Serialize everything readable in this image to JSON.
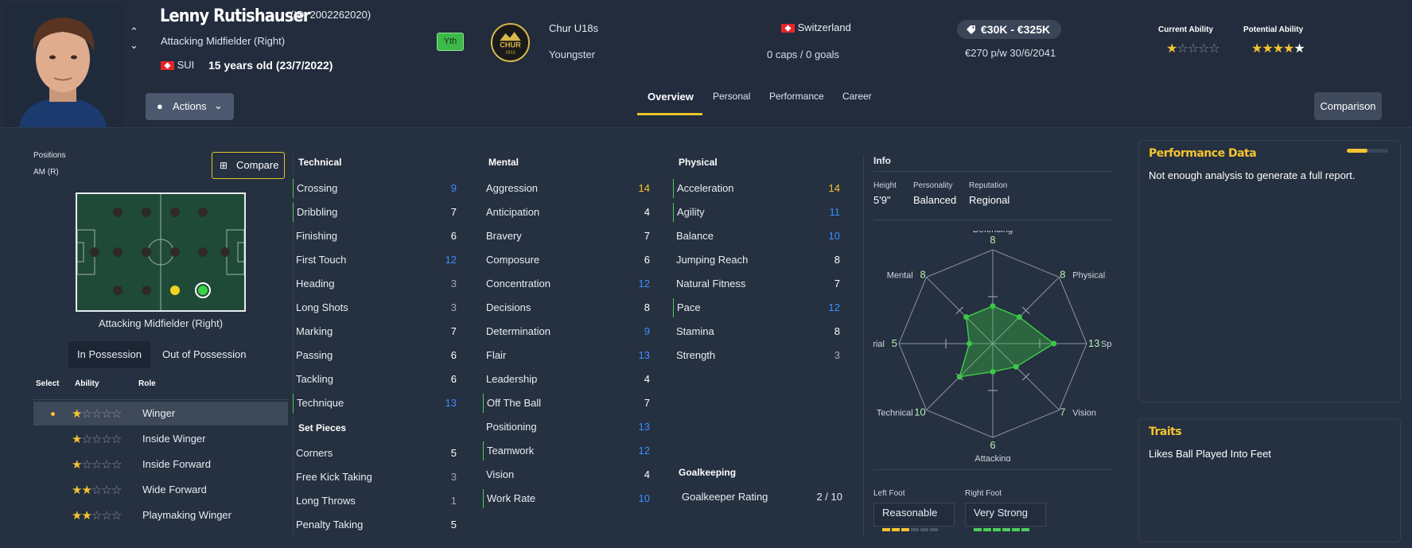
{
  "header": {
    "player_name": "Lenny Rutishauser",
    "player_id": "(ID: 2002262020)",
    "position": "Attacking Midfielder (Right)",
    "nationality": "SUI",
    "age": "15 years old (23/7/2022)",
    "youth_badge": "Yth",
    "club_crest_text": "CHUR",
    "club_crest_year": "1913",
    "club": "Chur U18s",
    "contract_type": "Youngster",
    "country": "Switzerland",
    "caps": "0 caps / 0 goals",
    "value": "€30K - €325K",
    "wage": "€270 p/w 30/6/2041",
    "current_ability_label": "Current Ability",
    "potential_ability_label": "Potential Ability",
    "current_ability_stars": 1,
    "potential_ability_stars": 4.5,
    "actions_label": "Actions",
    "comparison_label": "Comparison",
    "tabs": [
      "Overview",
      "Personal",
      "Performance",
      "Career"
    ],
    "active_tab": "Overview"
  },
  "positions": {
    "label": "Positions",
    "value": "AM (R)",
    "compare_label": "Compare",
    "pitch_caption": "Attacking Midfielder (Right)",
    "possession_tabs": [
      "In Possession",
      "Out of Possession"
    ],
    "table_headers": [
      "Select",
      "Ability",
      "Role"
    ],
    "roles": [
      {
        "stars": 1,
        "label": "Winger",
        "selected": true
      },
      {
        "stars": 1,
        "label": "Inside Winger",
        "selected": false
      },
      {
        "stars": 1,
        "label": "Inside Forward",
        "selected": false
      },
      {
        "stars": 2,
        "label": "Wide Forward",
        "selected": false
      },
      {
        "stars": 2,
        "label": "Playmaking Winger",
        "selected": false
      }
    ]
  },
  "attributes": {
    "technical_title": "Technical",
    "technical": [
      {
        "name": "Crossing",
        "value": "9",
        "color": "#3d8fff",
        "key": true
      },
      {
        "name": "Dribbling",
        "value": "7",
        "color": "#ffffff",
        "key": true
      },
      {
        "name": "Finishing",
        "value": "6",
        "color": "#ffffff",
        "key": false
      },
      {
        "name": "First Touch",
        "value": "12",
        "color": "#3d8fff",
        "key": false
      },
      {
        "name": "Heading",
        "value": "3",
        "color": "#a0a8b6",
        "key": false
      },
      {
        "name": "Long Shots",
        "value": "3",
        "color": "#a0a8b6",
        "key": false
      },
      {
        "name": "Marking",
        "value": "7",
        "color": "#ffffff",
        "key": false
      },
      {
        "name": "Passing",
        "value": "6",
        "color": "#ffffff",
        "key": false
      },
      {
        "name": "Tackling",
        "value": "6",
        "color": "#ffffff",
        "key": false
      },
      {
        "name": "Technique",
        "value": "13",
        "color": "#3d8fff",
        "key": true
      }
    ],
    "set_pieces_title": "Set Pieces",
    "set_pieces": [
      {
        "name": "Corners",
        "value": "5",
        "color": "#ffffff",
        "key": false
      },
      {
        "name": "Free Kick Taking",
        "value": "3",
        "color": "#a0a8b6",
        "key": false
      },
      {
        "name": "Long Throws",
        "value": "1",
        "color": "#a0a8b6",
        "key": false
      },
      {
        "name": "Penalty Taking",
        "value": "5",
        "color": "#ffffff",
        "key": false
      }
    ],
    "mental_title": "Mental",
    "mental": [
      {
        "name": "Aggression",
        "value": "14",
        "color": "#f4c430",
        "key": false
      },
      {
        "name": "Anticipation",
        "value": "4",
        "color": "#ffffff",
        "key": false
      },
      {
        "name": "Bravery",
        "value": "7",
        "color": "#ffffff",
        "key": false
      },
      {
        "name": "Composure",
        "value": "6",
        "color": "#ffffff",
        "key": false
      },
      {
        "name": "Concentration",
        "value": "12",
        "color": "#3d8fff",
        "key": false
      },
      {
        "name": "Decisions",
        "value": "8",
        "color": "#ffffff",
        "key": false
      },
      {
        "name": "Determination",
        "value": "9",
        "color": "#3d8fff",
        "key": false
      },
      {
        "name": "Flair",
        "value": "13",
        "color": "#3d8fff",
        "key": false
      },
      {
        "name": "Leadership",
        "value": "4",
        "color": "#ffffff",
        "key": false
      },
      {
        "name": "Off The Ball",
        "value": "7",
        "color": "#ffffff",
        "key": true
      },
      {
        "name": "Positioning",
        "value": "13",
        "color": "#3d8fff",
        "key": false
      },
      {
        "name": "Teamwork",
        "value": "12",
        "color": "#3d8fff",
        "key": true
      },
      {
        "name": "Vision",
        "value": "4",
        "color": "#ffffff",
        "key": false
      },
      {
        "name": "Work Rate",
        "value": "10",
        "color": "#3d8fff",
        "key": true
      }
    ],
    "physical_title": "Physical",
    "physical": [
      {
        "name": "Acceleration",
        "value": "14",
        "color": "#f4c430",
        "key": true
      },
      {
        "name": "Agility",
        "value": "11",
        "color": "#3d8fff",
        "key": true
      },
      {
        "name": "Balance",
        "value": "10",
        "color": "#3d8fff",
        "key": false
      },
      {
        "name": "Jumping Reach",
        "value": "8",
        "color": "#ffffff",
        "key": false
      },
      {
        "name": "Natural Fitness",
        "value": "7",
        "color": "#ffffff",
        "key": false
      },
      {
        "name": "Pace",
        "value": "12",
        "color": "#3d8fff",
        "key": true
      },
      {
        "name": "Stamina",
        "value": "8",
        "color": "#ffffff",
        "key": false
      },
      {
        "name": "Strength",
        "value": "3",
        "color": "#a0a8b6",
        "key": false
      }
    ],
    "goalkeeping_title": "Goalkeeping",
    "goalkeeper_rating_label": "Goalkeeper Rating",
    "goalkeeper_rating_value": "2 / 10"
  },
  "info": {
    "title": "Info",
    "height_label": "Height",
    "height": "5'9\"",
    "personality_label": "Personality",
    "personality": "Balanced",
    "reputation_label": "Reputation",
    "reputation": "Regional",
    "radar": [
      {
        "label": "Defending",
        "value": 8
      },
      {
        "label": "Physical",
        "value": 8
      },
      {
        "label": "Speed",
        "value": 13
      },
      {
        "label": "Vision",
        "value": 7
      },
      {
        "label": "Attacking",
        "value": 6
      },
      {
        "label": "Technical",
        "value": 10
      },
      {
        "label": "Aerial",
        "value": 5
      },
      {
        "label": "Mental",
        "value": 8
      }
    ],
    "left_foot_label": "Left Foot",
    "left_foot": "Reasonable",
    "left_foot_level": 3,
    "right_foot_label": "Right Foot",
    "right_foot": "Very Strong",
    "right_foot_level": 6
  },
  "cards": {
    "performance_title": "Performance Data",
    "performance_text": "Not enough analysis to generate a full report.",
    "performance_progress": 0.5,
    "traits_title": "Traits",
    "traits_text": "Likes Ball Played Into Feet"
  },
  "colors": {
    "accent_yellow": "#f4c430",
    "value_blue": "#3d8fff",
    "highlight_green": "#4bcf5a",
    "background": "#253040"
  }
}
